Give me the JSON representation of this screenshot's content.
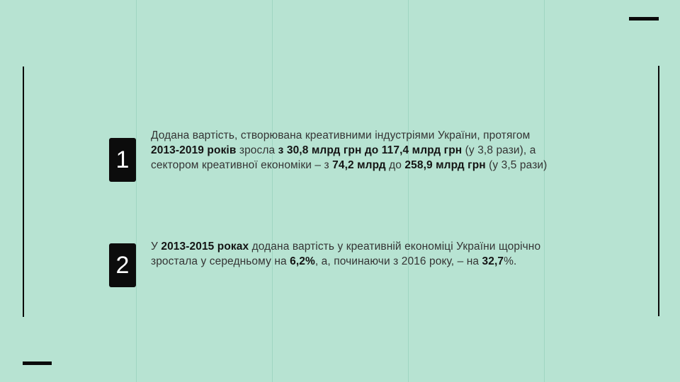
{
  "slide": {
    "background_color": "#b7e3d2",
    "grid_line_color": "#9fd5c2",
    "accent_bar_color": "#0b0b0b",
    "number_box_color": "#0c0c0c",
    "number_text_color": "#ffffff",
    "body_text_color": "#343434",
    "items": [
      {
        "number": "1",
        "segments": [
          {
            "text": "Додана вартість, створювана креативними індустріями України, протягом ",
            "bold": false
          },
          {
            "text": "2013-2019 років",
            "bold": true
          },
          {
            "text": " зросла ",
            "bold": false
          },
          {
            "text": "з 30,8 млрд грн до 117,4 млрд грн",
            "bold": true
          },
          {
            "text": " (у 3,8 рази), а сектором креативної економіки – з ",
            "bold": false
          },
          {
            "text": "74,2 млрд",
            "bold": true
          },
          {
            "text": " до ",
            "bold": false
          },
          {
            "text": "258,9 млрд грн",
            "bold": true
          },
          {
            "text": " (у 3,5 рази)",
            "bold": false
          }
        ]
      },
      {
        "number": "2",
        "segments": [
          {
            "text": "У ",
            "bold": false
          },
          {
            "text": "2013-2015 роках",
            "bold": true
          },
          {
            "text": " додана вартість у креативній економіці України щорічно зростала у середньому на ",
            "bold": false
          },
          {
            "text": "6,2%",
            "bold": true
          },
          {
            "text": ", а, починаючи з 2016 року, – на ",
            "bold": false
          },
          {
            "text": "32,7",
            "bold": true
          },
          {
            "text": "%.",
            "bold": false
          }
        ]
      }
    ]
  }
}
